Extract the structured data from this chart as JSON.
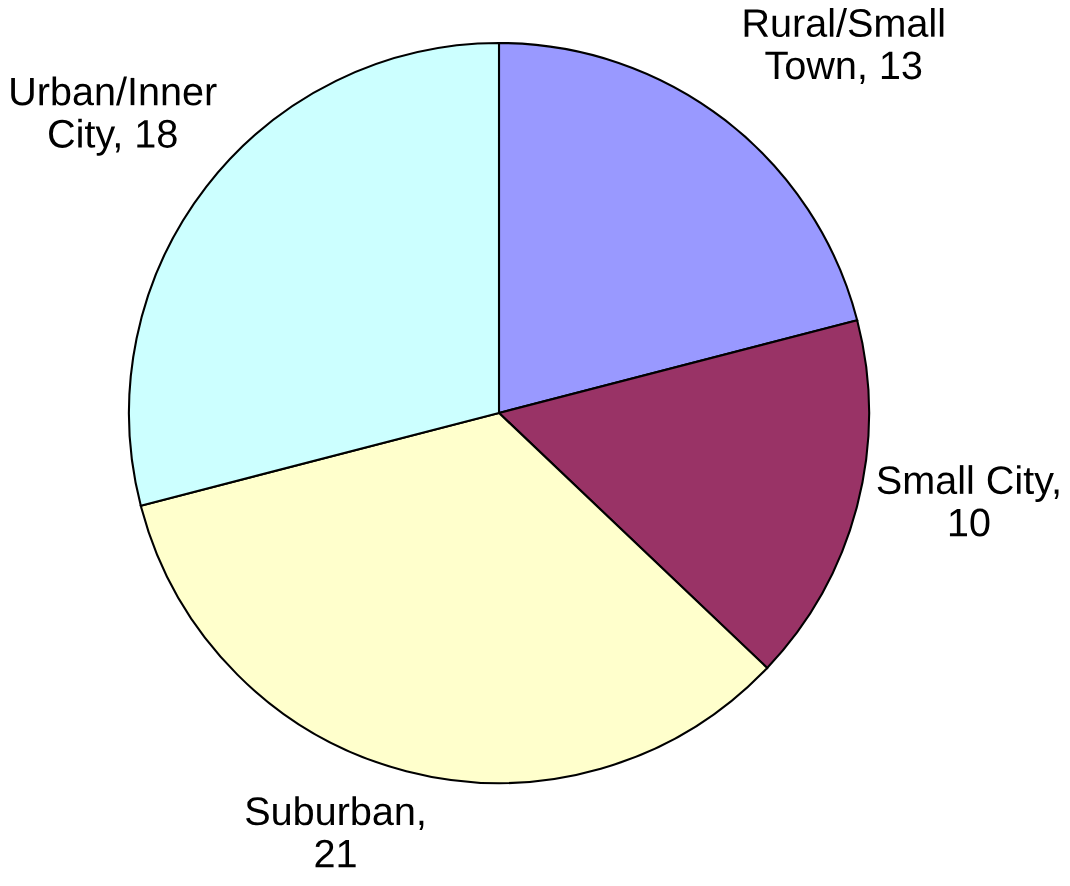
{
  "chart_data": {
    "type": "pie",
    "categories": [
      "Rural/Small Town",
      "Small City",
      "Suburban",
      "Urban/Inner City"
    ],
    "values": [
      13,
      10,
      21,
      18
    ],
    "value_labels": [
      ", 13",
      ", 10",
      ", 21",
      ", 18"
    ],
    "colors": [
      "#9999ff",
      "#993366",
      "#ffffcc",
      "#ccffff"
    ],
    "legend": false
  }
}
